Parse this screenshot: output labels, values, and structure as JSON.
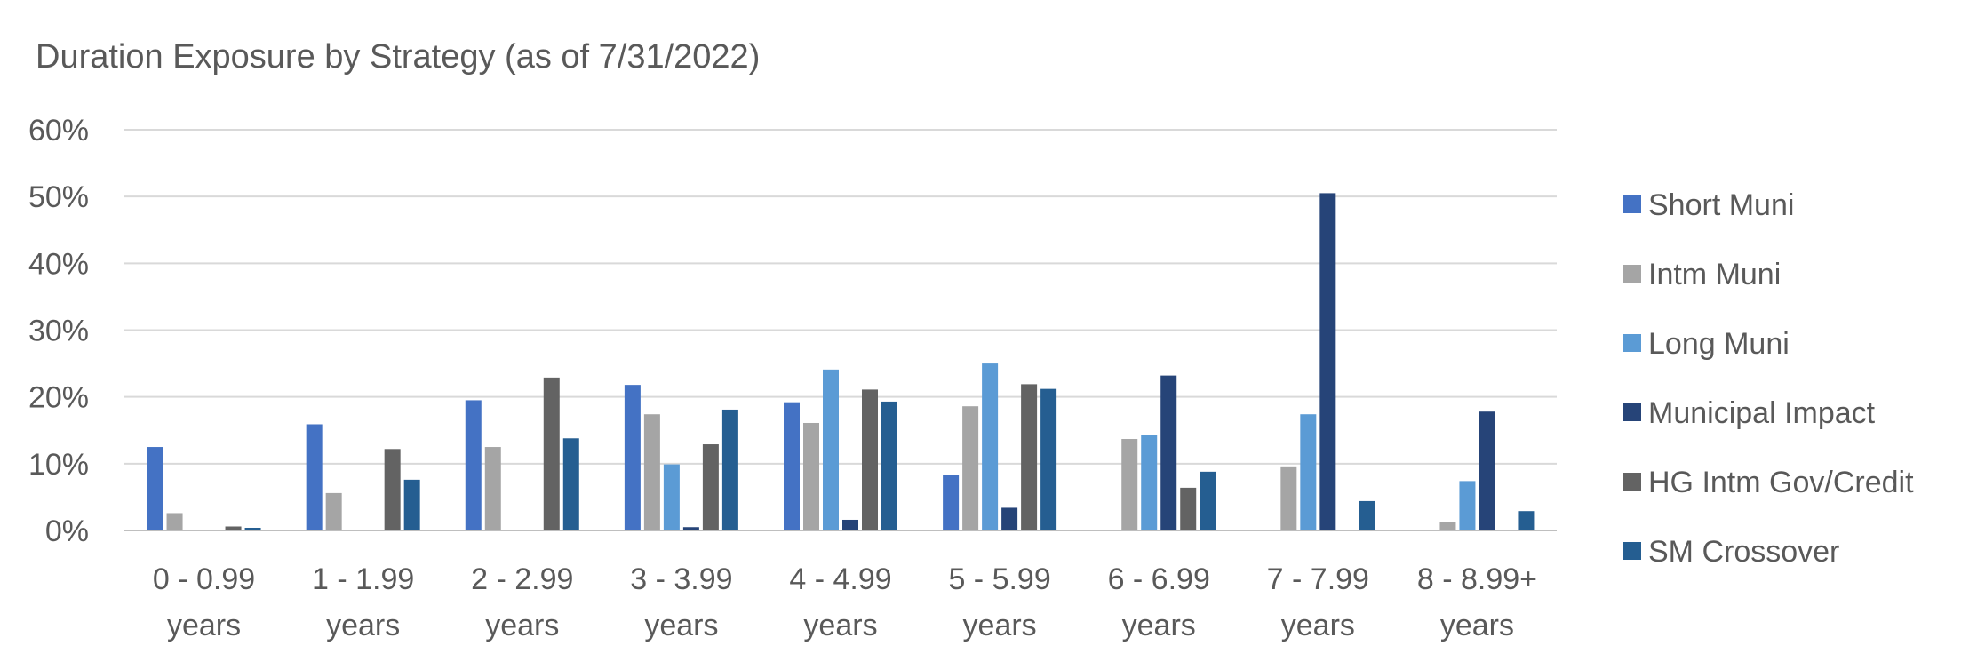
{
  "chart_data": {
    "type": "bar",
    "title": "Duration Exposure by Strategy (as of 7/31/2022)",
    "xlabel": "",
    "ylabel": "",
    "ylim": [
      0,
      60
    ],
    "yticks": [
      "0%",
      "10%",
      "20%",
      "30%",
      "40%",
      "50%",
      "60%"
    ],
    "grid": true,
    "legend_position": "right",
    "categories": [
      [
        "0 - 0.99",
        "years"
      ],
      [
        "1 - 1.99",
        "years"
      ],
      [
        "2 - 2.99",
        "years"
      ],
      [
        "3 - 3.99",
        "years"
      ],
      [
        "4 - 4.99",
        "years"
      ],
      [
        "5 - 5.99",
        "years"
      ],
      [
        "6 - 6.99",
        "years"
      ],
      [
        "7 - 7.99",
        "years"
      ],
      [
        "8 - 8.99+",
        "years"
      ]
    ],
    "series": [
      {
        "name": "Short Muni",
        "color": "#4472C4",
        "values": [
          12.5,
          15.9,
          19.5,
          21.8,
          19.2,
          8.3,
          0,
          0,
          0
        ]
      },
      {
        "name": "Intm Muni",
        "color": "#A5A5A5",
        "values": [
          2.6,
          5.6,
          12.5,
          17.4,
          16.1,
          18.6,
          13.7,
          9.6,
          1.2
        ]
      },
      {
        "name": "Long Muni",
        "color": "#5B9BD5",
        "values": [
          0,
          0,
          0,
          9.9,
          24.1,
          25.0,
          14.3,
          17.4,
          7.4
        ]
      },
      {
        "name": "Municipal Impact",
        "color": "#264478",
        "values": [
          0,
          0,
          0,
          0.5,
          1.6,
          3.4,
          23.2,
          50.5,
          17.8
        ]
      },
      {
        "name": "HG Intm Gov/Credit",
        "color": "#636363",
        "values": [
          0.6,
          12.2,
          22.9,
          12.9,
          21.1,
          21.9,
          6.4,
          0,
          0
        ]
      },
      {
        "name": "SM Crossover",
        "color": "#255E91",
        "values": [
          0.4,
          7.6,
          13.8,
          18.1,
          19.3,
          21.2,
          8.8,
          4.4,
          2.9
        ]
      }
    ]
  }
}
